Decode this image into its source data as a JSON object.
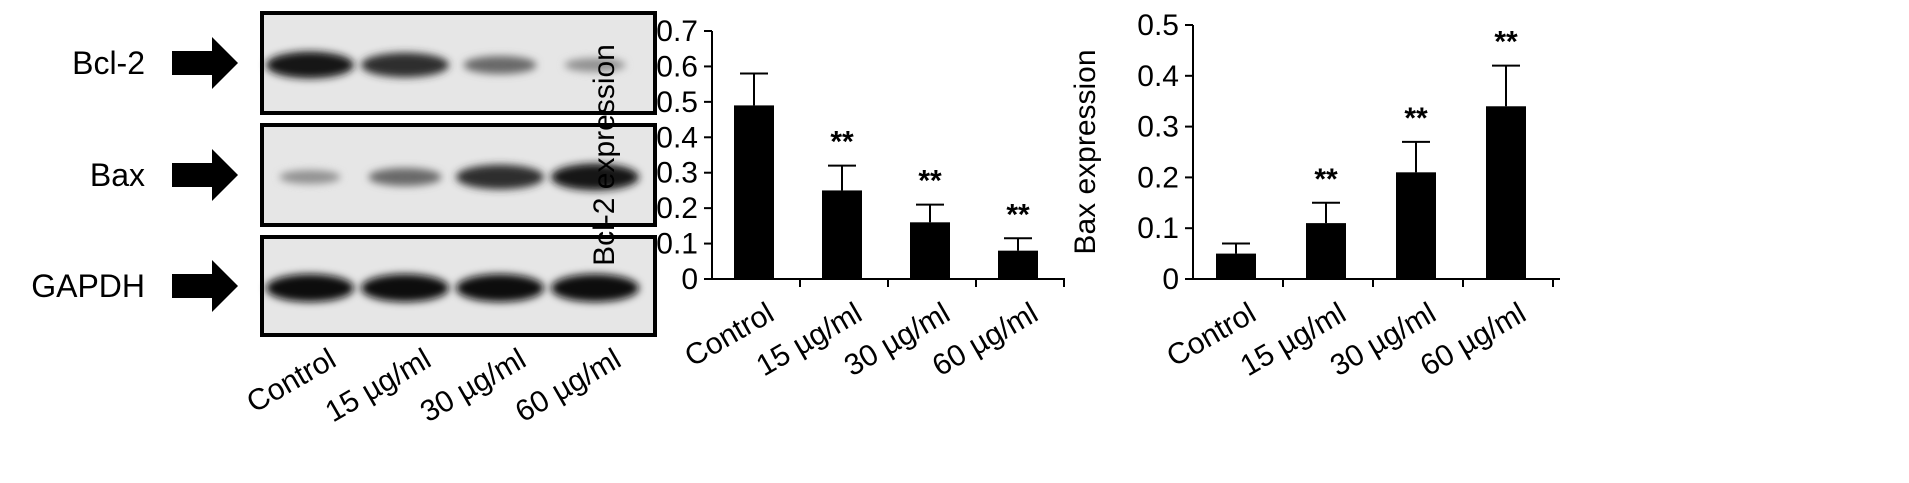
{
  "blot": {
    "rows": [
      {
        "label": "Bcl-2",
        "intensities": [
          0.95,
          0.85,
          0.55,
          0.35
        ]
      },
      {
        "label": "Bax",
        "intensities": [
          0.35,
          0.55,
          0.85,
          0.95
        ]
      },
      {
        "label": "GAPDH",
        "intensities": [
          1.0,
          1.0,
          1.0,
          1.0
        ]
      }
    ],
    "lanes": [
      "Control",
      "15 µg/ml",
      "30 µg/ml",
      "60 µg/ml"
    ]
  },
  "chart_data": [
    {
      "type": "bar",
      "categories": [
        "Control",
        "15 µg/ml",
        "30 µg/ml",
        "60 µg/ml"
      ],
      "values": [
        0.49,
        0.25,
        0.16,
        0.08
      ],
      "errors": [
        0.09,
        0.07,
        0.05,
        0.035
      ],
      "significance": [
        "",
        "**",
        "**",
        "**"
      ],
      "ylabel": "Bcl-2 expression",
      "xlabel": "",
      "ylim": [
        0,
        0.7
      ],
      "yticks": [
        "0",
        "0.1",
        "0.2",
        "0.3",
        "0.4",
        "0.5",
        "0.6",
        "0.7"
      ],
      "grid": false,
      "bar_color": "#000000"
    },
    {
      "type": "bar",
      "categories": [
        "Control",
        "15 µg/ml",
        "30 µg/ml",
        "60 µg/ml"
      ],
      "values": [
        0.05,
        0.11,
        0.21,
        0.34
      ],
      "errors": [
        0.02,
        0.04,
        0.06,
        0.08
      ],
      "significance": [
        "",
        "**",
        "**",
        "**"
      ],
      "ylabel": "Bax expression",
      "xlabel": "",
      "ylim": [
        0,
        0.5
      ],
      "yticks": [
        "0",
        "0.1",
        "0.2",
        "0.3",
        "0.4",
        "0.5"
      ],
      "grid": false,
      "bar_color": "#000000"
    }
  ]
}
